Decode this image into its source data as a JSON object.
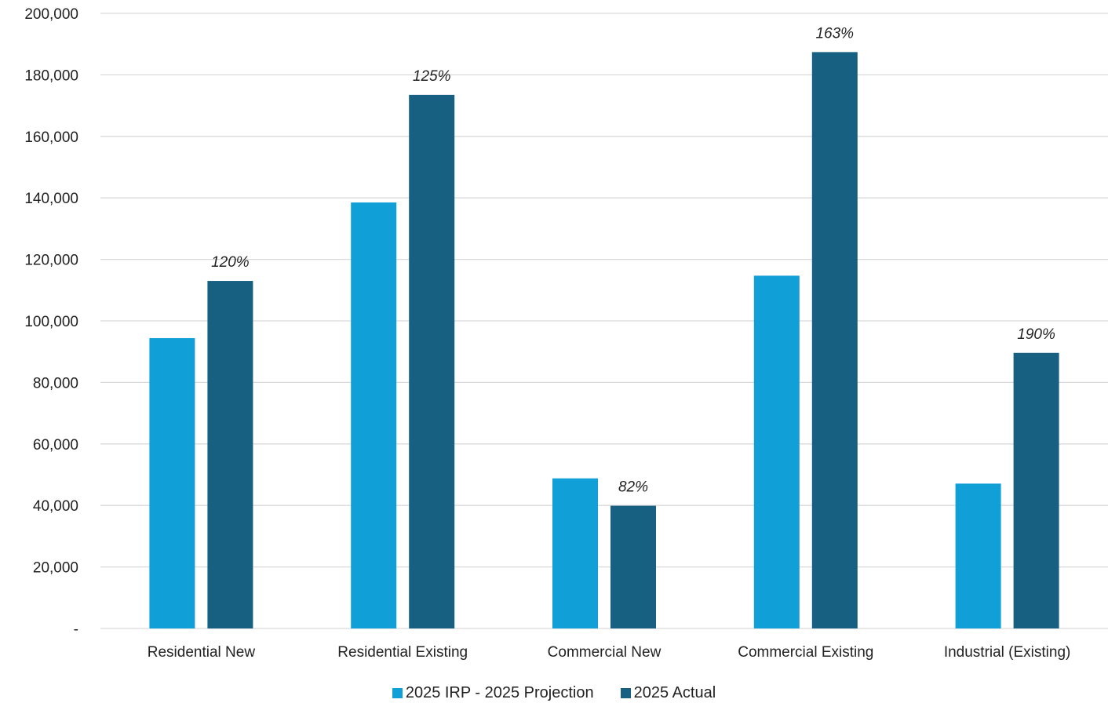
{
  "chart_data": {
    "type": "bar",
    "categories": [
      "Residential New",
      "Residential Existing",
      "Commercial New",
      "Commercial Existing",
      "Industrial (Existing)"
    ],
    "series": [
      {
        "name": "2025 IRP - 2025 Projection",
        "color": "#119fd7",
        "values": [
          94400,
          138500,
          48800,
          114700,
          47100
        ]
      },
      {
        "name": "2025 Actual",
        "color": "#176082",
        "values": [
          113000,
          173500,
          39900,
          187400,
          89600
        ]
      }
    ],
    "data_labels": [
      "120%",
      "125%",
      "82%",
      "163%",
      "190%"
    ],
    "ylim": [
      0,
      200000
    ],
    "yticks": [
      {
        "value": 0,
        "label": "-"
      },
      {
        "value": 20000,
        "label": "20,000"
      },
      {
        "value": 40000,
        "label": "40,000"
      },
      {
        "value": 60000,
        "label": "60,000"
      },
      {
        "value": 80000,
        "label": "80,000"
      },
      {
        "value": 100000,
        "label": "100,000"
      },
      {
        "value": 120000,
        "label": "120,000"
      },
      {
        "value": 140000,
        "label": "140,000"
      },
      {
        "value": 160000,
        "label": "160,000"
      },
      {
        "value": 180000,
        "label": "180,000"
      },
      {
        "value": 200000,
        "label": "200,000"
      }
    ],
    "grid": true,
    "legend_position": "bottom-center",
    "title": "",
    "xlabel": "",
    "ylabel": ""
  }
}
